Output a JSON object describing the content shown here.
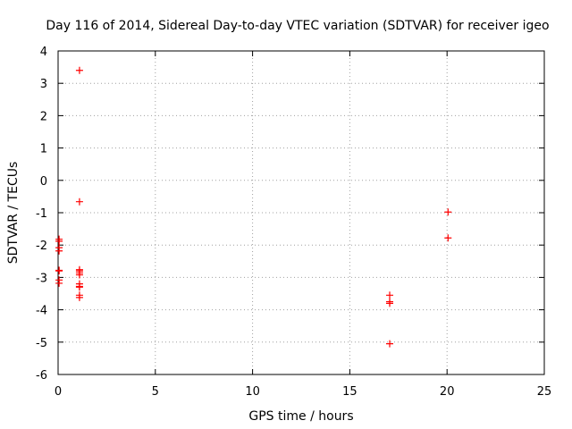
{
  "chart_data": {
    "type": "scatter",
    "title": "Day 116 of 2014, Sidereal Day-to-day VTEC variation (SDTVAR) for receiver igeo",
    "xlabel": "GPS time / hours",
    "ylabel": "SDTVAR / TECUs",
    "xlim": [
      0,
      25
    ],
    "ylim": [
      -6,
      4
    ],
    "xticks": [
      0,
      5,
      10,
      15,
      20,
      25
    ],
    "yticks": [
      -6,
      -5,
      -4,
      -3,
      -2,
      -1,
      0,
      1,
      2,
      3,
      4
    ],
    "grid": true,
    "marker_color": "#ff0000",
    "series": [
      {
        "name": "SDTVAR",
        "points": [
          [
            0.05,
            -1.82
          ],
          [
            0.05,
            -1.88
          ],
          [
            0.05,
            -2.08
          ],
          [
            0.05,
            -2.18
          ],
          [
            0.05,
            -2.78
          ],
          [
            0.05,
            -2.8
          ],
          [
            0.05,
            -3.08
          ],
          [
            0.05,
            -3.18
          ],
          [
            1.1,
            3.4
          ],
          [
            1.1,
            -0.66
          ],
          [
            1.1,
            -2.76
          ],
          [
            1.1,
            -2.8
          ],
          [
            1.1,
            -2.86
          ],
          [
            1.1,
            -2.92
          ],
          [
            1.1,
            -3.2
          ],
          [
            1.1,
            -3.28
          ],
          [
            1.1,
            -3.3
          ],
          [
            1.1,
            -3.55
          ],
          [
            1.1,
            -3.62
          ],
          [
            17.05,
            -3.55
          ],
          [
            17.05,
            -3.75
          ],
          [
            17.05,
            -3.8
          ],
          [
            17.05,
            -5.05
          ],
          [
            20.05,
            -0.98
          ],
          [
            20.05,
            -1.78
          ]
        ]
      }
    ]
  }
}
